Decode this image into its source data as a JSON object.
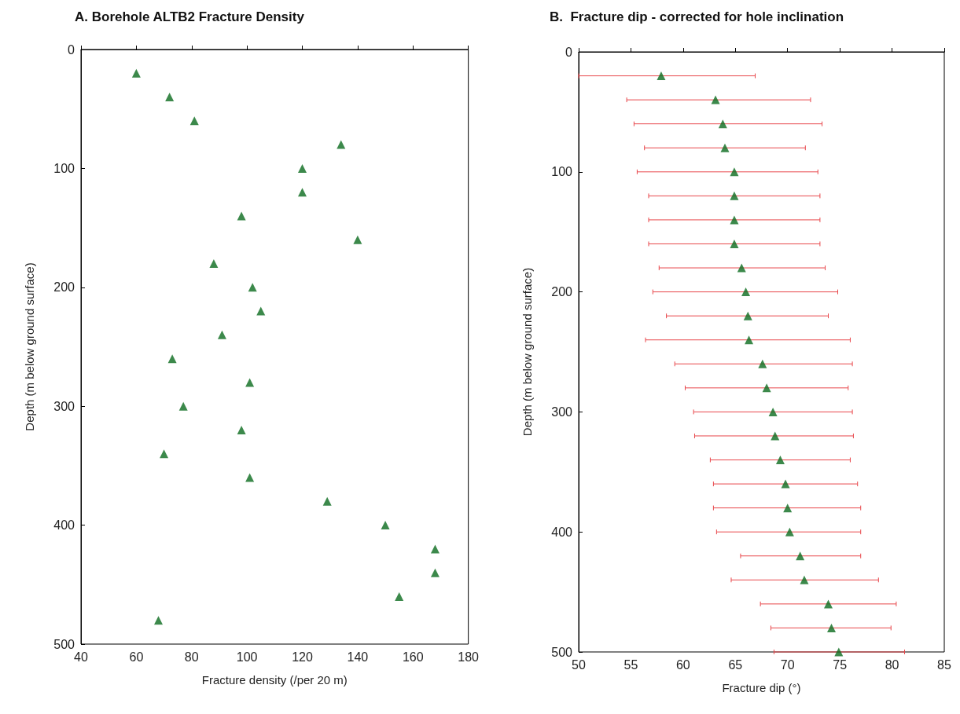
{
  "chart_data": [
    {
      "type": "scatter",
      "title": "A. Borehole ALTB2 Fracture Density",
      "xlabel": "Fracture density (/per 20 m)",
      "ylabel": "Depth (m below ground surface)",
      "x": [
        60,
        72,
        81,
        134,
        120,
        120,
        98,
        140,
        88,
        102,
        105,
        91,
        73,
        101,
        77,
        98,
        70,
        101,
        129,
        150,
        168,
        168,
        155,
        68
      ],
      "values": [
        20,
        40,
        60,
        80,
        100,
        120,
        140,
        160,
        180,
        200,
        220,
        240,
        260,
        280,
        300,
        320,
        340,
        360,
        380,
        400,
        420,
        440,
        460,
        480
      ],
      "color": "#0b6b1e",
      "marker": "triangle",
      "grid": false,
      "xlim": [
        40,
        180
      ],
      "xticks": [
        40,
        60,
        80,
        100,
        120,
        140,
        160,
        180
      ],
      "ylim": [
        500,
        0
      ],
      "yticks": [
        0,
        100,
        200,
        300,
        400,
        500
      ]
    },
    {
      "type": "scatter",
      "title": "B.  Fracture dip - corrected for hole inclination",
      "xlabel": "Fracture dip (°)",
      "ylabel": "Depth (m below ground surface)",
      "x": [
        57.9,
        63.1,
        63.8,
        64.0,
        64.9,
        64.9,
        64.9,
        64.9,
        65.6,
        66.0,
        66.2,
        66.3,
        67.6,
        68.0,
        68.6,
        68.8,
        69.3,
        69.8,
        70.0,
        70.2,
        71.2,
        71.6,
        73.9,
        74.2,
        74.9
      ],
      "values": [
        20,
        40,
        60,
        80,
        100,
        120,
        140,
        160,
        180,
        200,
        220,
        240,
        260,
        280,
        300,
        320,
        340,
        360,
        380,
        400,
        420,
        440,
        460,
        480,
        500
      ],
      "xerrors": [
        [
          50,
          66.9
        ],
        [
          54.6,
          72.2
        ],
        [
          55.3,
          73.3
        ],
        [
          56.3,
          71.7
        ],
        [
          55.6,
          72.9
        ],
        [
          56.7,
          73.1
        ],
        [
          56.7,
          73.1
        ],
        [
          56.7,
          73.1
        ],
        [
          57.7,
          73.6
        ],
        [
          57.1,
          74.8
        ],
        [
          58.4,
          73.9
        ],
        [
          56.4,
          76.0
        ],
        [
          59.2,
          76.2
        ],
        [
          60.2,
          75.8
        ],
        [
          61.0,
          76.2
        ],
        [
          61.1,
          76.3
        ],
        [
          62.6,
          76.0
        ],
        [
          62.9,
          76.7
        ],
        [
          62.9,
          77.0
        ],
        [
          63.2,
          77.0
        ],
        [
          65.5,
          77.0
        ],
        [
          64.6,
          78.7
        ],
        [
          67.4,
          80.4
        ],
        [
          68.4,
          79.9
        ],
        [
          68.7,
          81.2
        ]
      ],
      "color": "#0b6b1e",
      "marker": "triangle",
      "grid": false,
      "xlim": [
        50,
        85
      ],
      "xticks": [
        50,
        55,
        60,
        65,
        70,
        75,
        80,
        85
      ],
      "ylim": [
        500,
        0
      ],
      "yticks": [
        0,
        100,
        200,
        300,
        400,
        500
      ]
    }
  ]
}
